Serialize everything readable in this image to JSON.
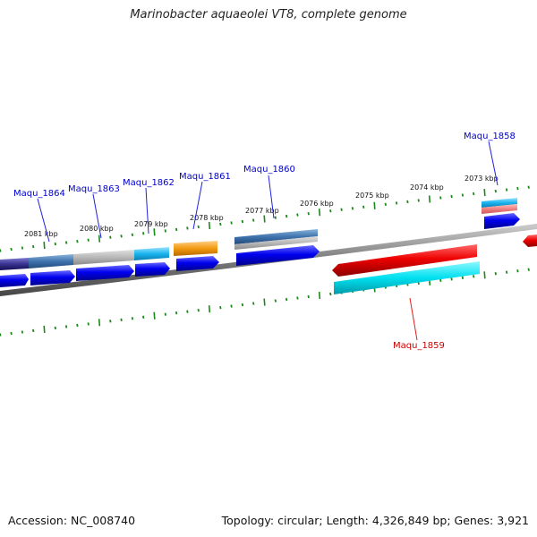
{
  "title": "Marinobacter aquaeolei VT8, complete genome",
  "footer": {
    "accession": "Accession: NC_008740",
    "summary": "Topology: circular; Length: 4,326,849 bp; Genes: 3,921"
  },
  "colors": {
    "backbone": "#808080",
    "tick": "#1a8a1a",
    "forward_gene": "#0000ee",
    "reverse_gene": "#ee0000",
    "label_forward": "#0000cc",
    "label_reverse": "#cc0000"
  },
  "ticks": [
    {
      "label": "2081 kbp"
    },
    {
      "label": "2080 kbp"
    },
    {
      "label": "2079 kbp"
    },
    {
      "label": "2078 kbp"
    },
    {
      "label": "2077 kbp"
    },
    {
      "label": "2076 kbp"
    },
    {
      "label": "2075 kbp"
    },
    {
      "label": "2074 kbp"
    },
    {
      "label": "2073 kbp"
    }
  ],
  "genes": [
    {
      "name": "Maqu_1864",
      "strand": "+"
    },
    {
      "name": "Maqu_1863",
      "strand": "+"
    },
    {
      "name": "Maqu_1862",
      "strand": "+"
    },
    {
      "name": "Maqu_1861",
      "strand": "+"
    },
    {
      "name": "Maqu_1860",
      "strand": "+"
    },
    {
      "name": "Maqu_1859",
      "strand": "-"
    },
    {
      "name": "Maqu_1858",
      "strand": "+"
    }
  ]
}
